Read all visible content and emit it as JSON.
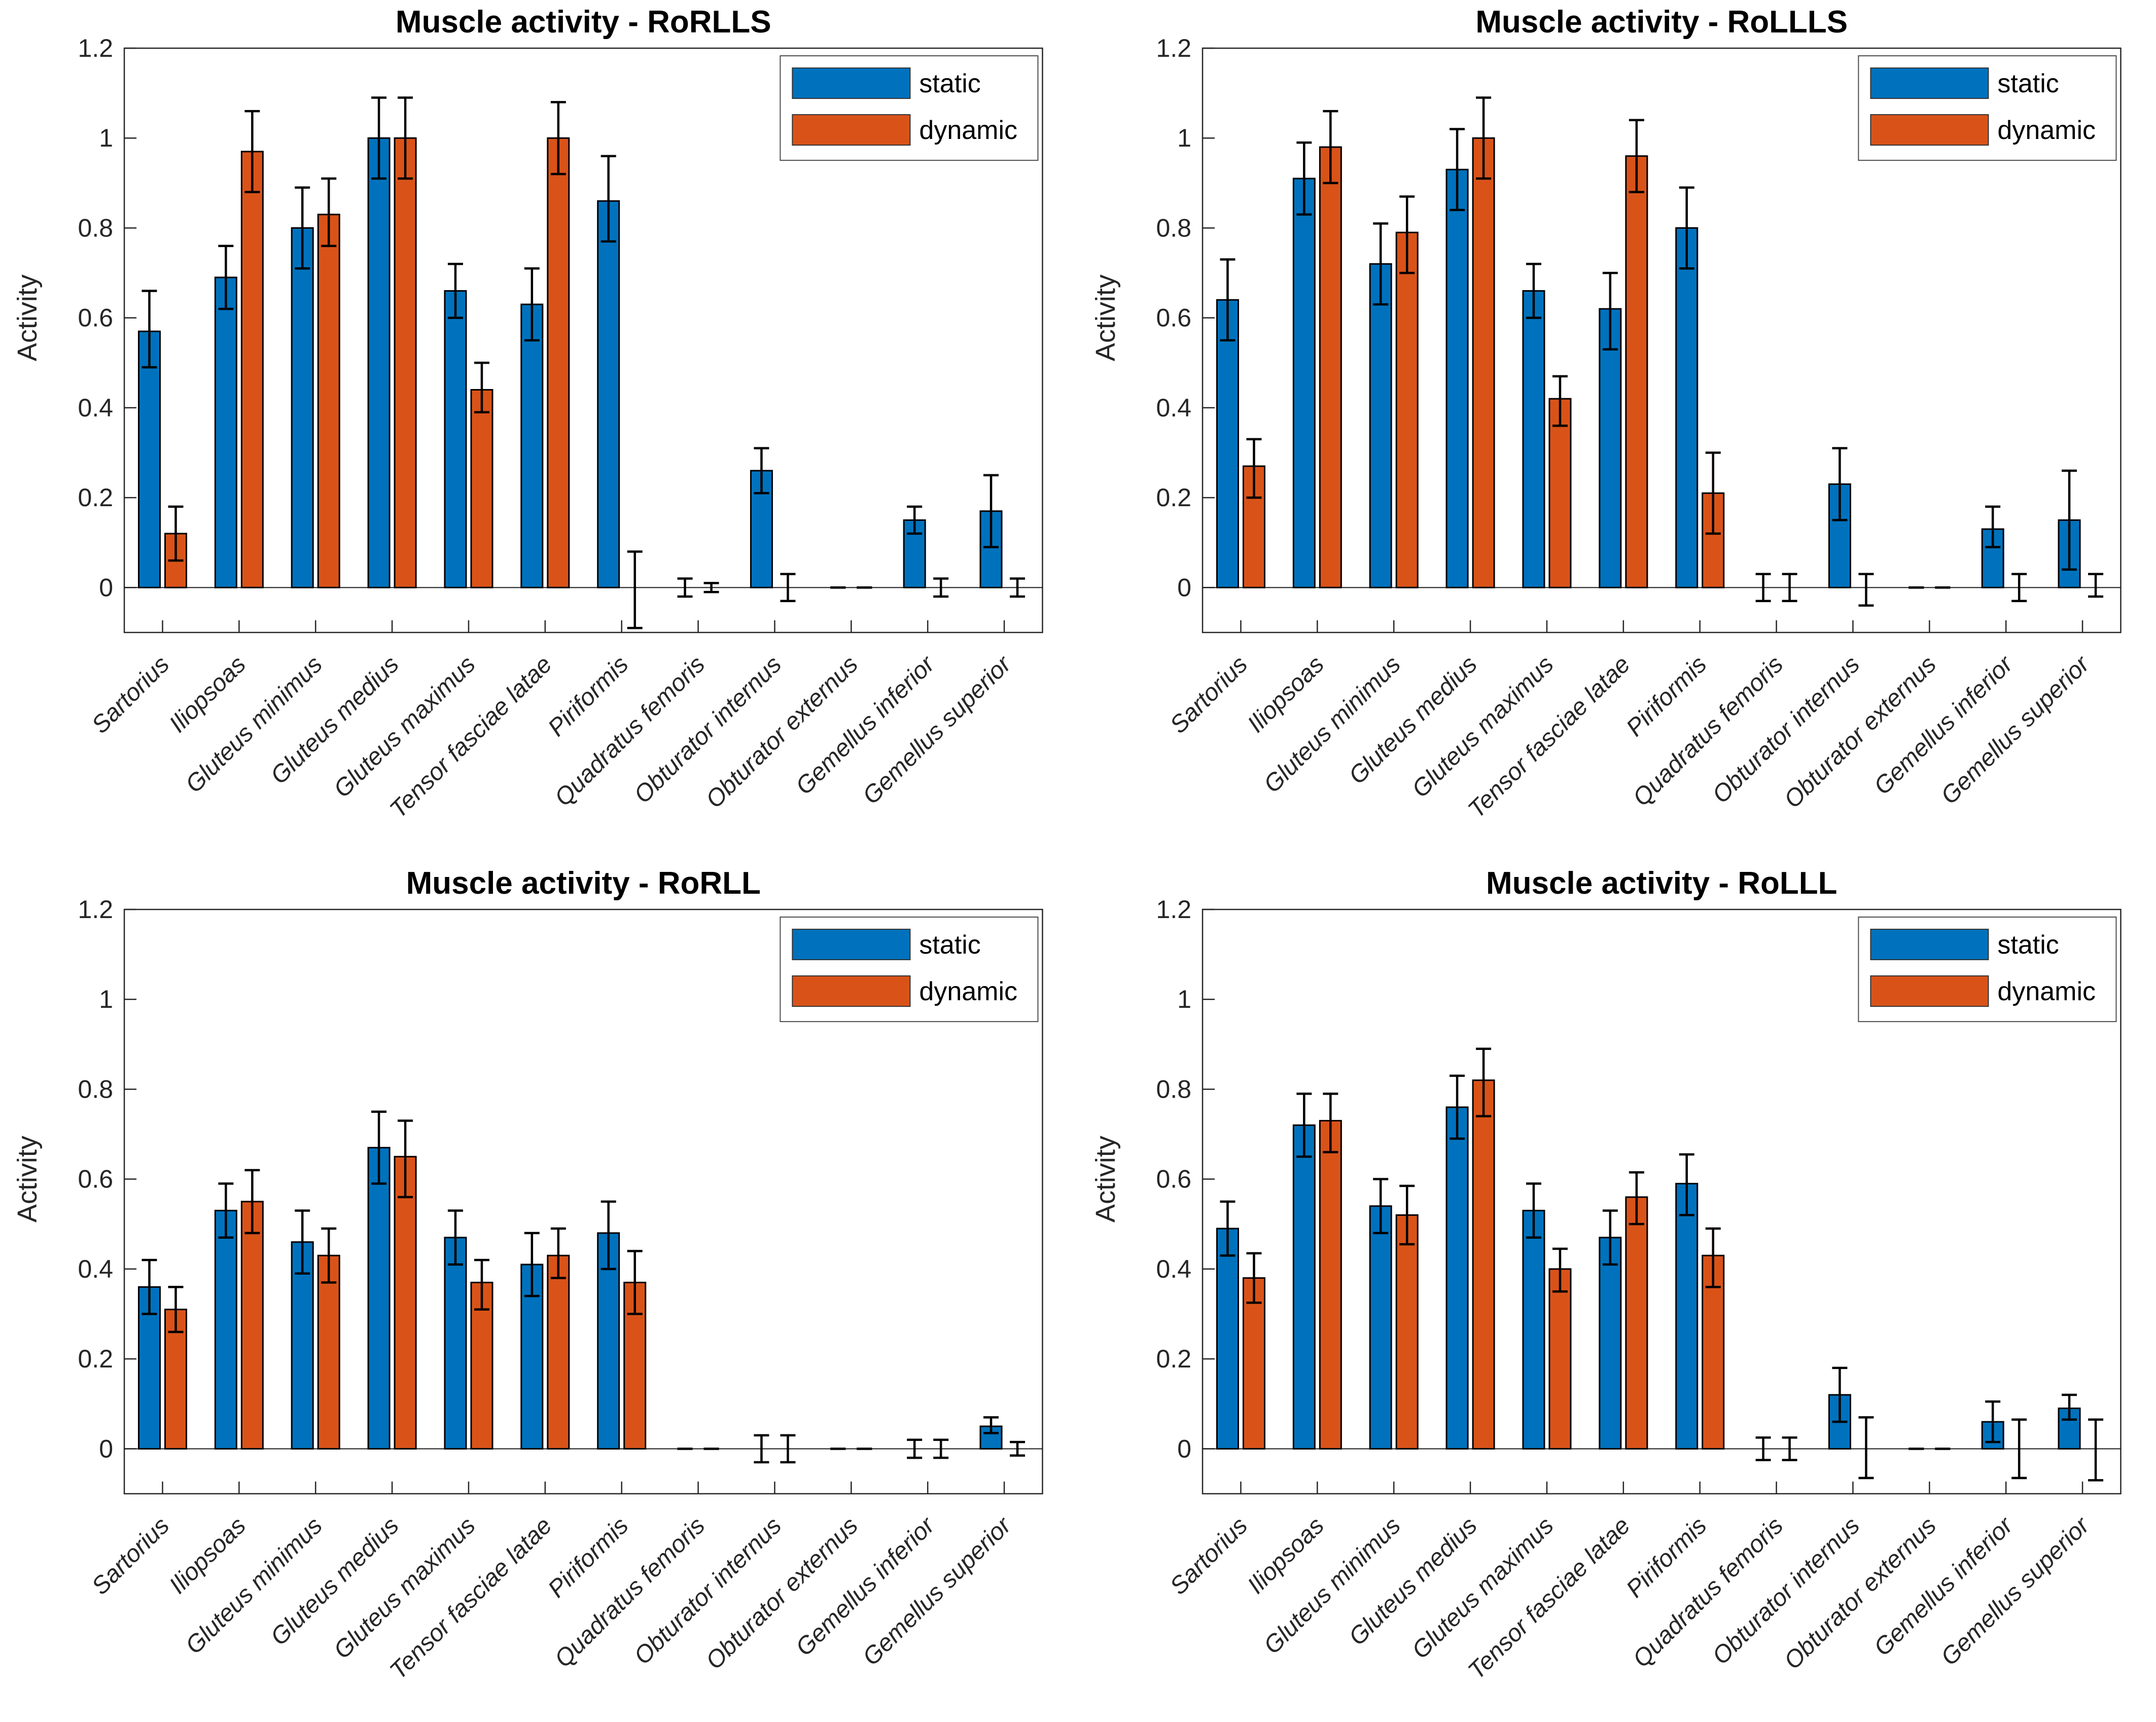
{
  "figure": {
    "background": "#ffffff",
    "axis_color": "#262626",
    "bar_edge_color": "#000000",
    "errorbar_color": "#000000",
    "static_color": "#0072BD",
    "dynamic_color": "#D95319"
  },
  "chart_data": [
    {
      "type": "bar",
      "title": "Muscle activity - RoRLLS",
      "ylabel": "Activity",
      "ylim": [
        -0.1,
        1.2
      ],
      "yticks": [
        0,
        0.2,
        0.4,
        0.6,
        0.8,
        1,
        1.2
      ],
      "grid": false,
      "legend_position": "top-right",
      "legend": [
        "static",
        "dynamic"
      ],
      "categories": [
        "Sartorius",
        "Iliopsoas",
        "Gluteus minimus",
        "Gluteus medius",
        "Gluteus maximus",
        "Tensor fasciae latae",
        "Piriformis",
        "Quadratus femoris",
        "Obturator internus",
        "Obturator externus",
        "Gemellus inferior",
        "Gemellus superior"
      ],
      "series": [
        {
          "name": "static",
          "color": "#0072BD",
          "values": [
            0.57,
            0.69,
            0.8,
            1.0,
            0.66,
            0.63,
            0.86,
            0.0,
            0.26,
            0.0,
            0.15,
            0.17
          ],
          "err_minus": [
            0.08,
            0.07,
            0.09,
            0.09,
            0.06,
            0.08,
            0.09,
            0.02,
            0.05,
            0.0,
            0.03,
            0.08
          ],
          "err_plus": [
            0.09,
            0.07,
            0.09,
            0.09,
            0.06,
            0.08,
            0.1,
            0.02,
            0.05,
            0.0,
            0.03,
            0.08
          ]
        },
        {
          "name": "dynamic",
          "color": "#D95319",
          "values": [
            0.12,
            0.97,
            0.83,
            1.0,
            0.44,
            1.0,
            0.0,
            0.0,
            0.0,
            0.0,
            0.0,
            0.0
          ],
          "err_minus": [
            0.06,
            0.09,
            0.07,
            0.09,
            0.05,
            0.08,
            0.09,
            0.01,
            0.03,
            0.0,
            0.02,
            0.02
          ],
          "err_plus": [
            0.06,
            0.09,
            0.08,
            0.09,
            0.06,
            0.08,
            0.08,
            0.01,
            0.03,
            0.0,
            0.02,
            0.02
          ]
        }
      ]
    },
    {
      "type": "bar",
      "title": "Muscle activity - RoLLLS",
      "ylabel": "Activity",
      "ylim": [
        -0.1,
        1.2
      ],
      "yticks": [
        0,
        0.2,
        0.4,
        0.6,
        0.8,
        1,
        1.2
      ],
      "grid": false,
      "legend_position": "top-right",
      "legend": [
        "static",
        "dynamic"
      ],
      "categories": [
        "Sartorius",
        "Iliopsoas",
        "Gluteus minimus",
        "Gluteus medius",
        "Gluteus maximus",
        "Tensor fasciae latae",
        "Piriformis",
        "Quadratus femoris",
        "Obturator internus",
        "Obturator externus",
        "Gemellus inferior",
        "Gemellus superior"
      ],
      "series": [
        {
          "name": "static",
          "color": "#0072BD",
          "values": [
            0.64,
            0.91,
            0.72,
            0.93,
            0.66,
            0.62,
            0.8,
            0.0,
            0.23,
            0.0,
            0.13,
            0.15
          ],
          "err_minus": [
            0.09,
            0.08,
            0.09,
            0.09,
            0.06,
            0.09,
            0.09,
            0.03,
            0.08,
            0.0,
            0.04,
            0.11
          ],
          "err_plus": [
            0.09,
            0.08,
            0.09,
            0.09,
            0.06,
            0.08,
            0.09,
            0.03,
            0.08,
            0.0,
            0.05,
            0.11
          ]
        },
        {
          "name": "dynamic",
          "color": "#D95319",
          "values": [
            0.27,
            0.98,
            0.79,
            1.0,
            0.42,
            0.96,
            0.21,
            0.0,
            0.0,
            0.0,
            0.0,
            0.0
          ],
          "err_minus": [
            0.07,
            0.08,
            0.09,
            0.09,
            0.06,
            0.08,
            0.09,
            0.03,
            0.04,
            0.0,
            0.03,
            0.02
          ],
          "err_plus": [
            0.06,
            0.08,
            0.08,
            0.09,
            0.05,
            0.08,
            0.09,
            0.03,
            0.03,
            0.0,
            0.03,
            0.03
          ]
        }
      ]
    },
    {
      "type": "bar",
      "title": "Muscle activity - RoRLL",
      "ylabel": "Activity",
      "ylim": [
        -0.1,
        1.2
      ],
      "yticks": [
        0,
        0.2,
        0.4,
        0.6,
        0.8,
        1,
        1.2
      ],
      "grid": false,
      "legend_position": "top-right",
      "legend": [
        "static",
        "dynamic"
      ],
      "categories": [
        "Sartorius",
        "Iliopsoas",
        "Gluteus minimus",
        "Gluteus medius",
        "Gluteus maximus",
        "Tensor fasciae latae",
        "Piriformis",
        "Quadratus femoris",
        "Obturator internus",
        "Obturator externus",
        "Gemellus inferior",
        "Gemellus superior"
      ],
      "series": [
        {
          "name": "static",
          "color": "#0072BD",
          "values": [
            0.36,
            0.53,
            0.46,
            0.67,
            0.47,
            0.41,
            0.48,
            0.0,
            0.0,
            0.0,
            0.0,
            0.05
          ],
          "err_minus": [
            0.06,
            0.06,
            0.07,
            0.08,
            0.06,
            0.07,
            0.08,
            0.0,
            0.03,
            0.0,
            0.02,
            0.015
          ],
          "err_plus": [
            0.06,
            0.06,
            0.07,
            0.08,
            0.06,
            0.07,
            0.07,
            0.0,
            0.03,
            0.0,
            0.02,
            0.02
          ]
        },
        {
          "name": "dynamic",
          "color": "#D95319",
          "values": [
            0.31,
            0.55,
            0.43,
            0.65,
            0.37,
            0.43,
            0.37,
            0.0,
            0.0,
            0.0,
            0.0,
            0.0
          ],
          "err_minus": [
            0.05,
            0.07,
            0.06,
            0.09,
            0.06,
            0.05,
            0.07,
            0.0,
            0.03,
            0.0,
            0.02,
            0.015
          ],
          "err_plus": [
            0.05,
            0.07,
            0.06,
            0.08,
            0.05,
            0.06,
            0.07,
            0.0,
            0.03,
            0.0,
            0.02,
            0.015
          ]
        }
      ]
    },
    {
      "type": "bar",
      "title": "Muscle activity - RoLLL",
      "ylabel": "Activity",
      "ylim": [
        -0.1,
        1.2
      ],
      "yticks": [
        0,
        0.2,
        0.4,
        0.6,
        0.8,
        1,
        1.2
      ],
      "grid": false,
      "legend_position": "top-right",
      "legend": [
        "static",
        "dynamic"
      ],
      "categories": [
        "Sartorius",
        "Iliopsoas",
        "Gluteus minimus",
        "Gluteus medius",
        "Gluteus maximus",
        "Tensor fasciae latae",
        "Piriformis",
        "Quadratus femoris",
        "Obturator internus",
        "Obturator externus",
        "Gemellus inferior",
        "Gemellus superior"
      ],
      "series": [
        {
          "name": "static",
          "color": "#0072BD",
          "values": [
            0.49,
            0.72,
            0.54,
            0.76,
            0.53,
            0.47,
            0.59,
            0.0,
            0.12,
            0.0,
            0.06,
            0.09
          ],
          "err_minus": [
            0.06,
            0.07,
            0.06,
            0.07,
            0.06,
            0.06,
            0.07,
            0.025,
            0.06,
            0.0,
            0.045,
            0.025
          ],
          "err_plus": [
            0.06,
            0.07,
            0.06,
            0.07,
            0.06,
            0.06,
            0.065,
            0.025,
            0.06,
            0.0,
            0.045,
            0.03
          ]
        },
        {
          "name": "dynamic",
          "color": "#D95319",
          "values": [
            0.38,
            0.73,
            0.52,
            0.82,
            0.4,
            0.56,
            0.43,
            0.0,
            0.0,
            0.0,
            0.0,
            0.0
          ],
          "err_minus": [
            0.055,
            0.07,
            0.065,
            0.08,
            0.05,
            0.06,
            0.07,
            0.025,
            0.065,
            0.0,
            0.065,
            0.07
          ],
          "err_plus": [
            0.055,
            0.06,
            0.065,
            0.07,
            0.045,
            0.055,
            0.06,
            0.025,
            0.07,
            0.0,
            0.065,
            0.065
          ]
        }
      ]
    }
  ]
}
